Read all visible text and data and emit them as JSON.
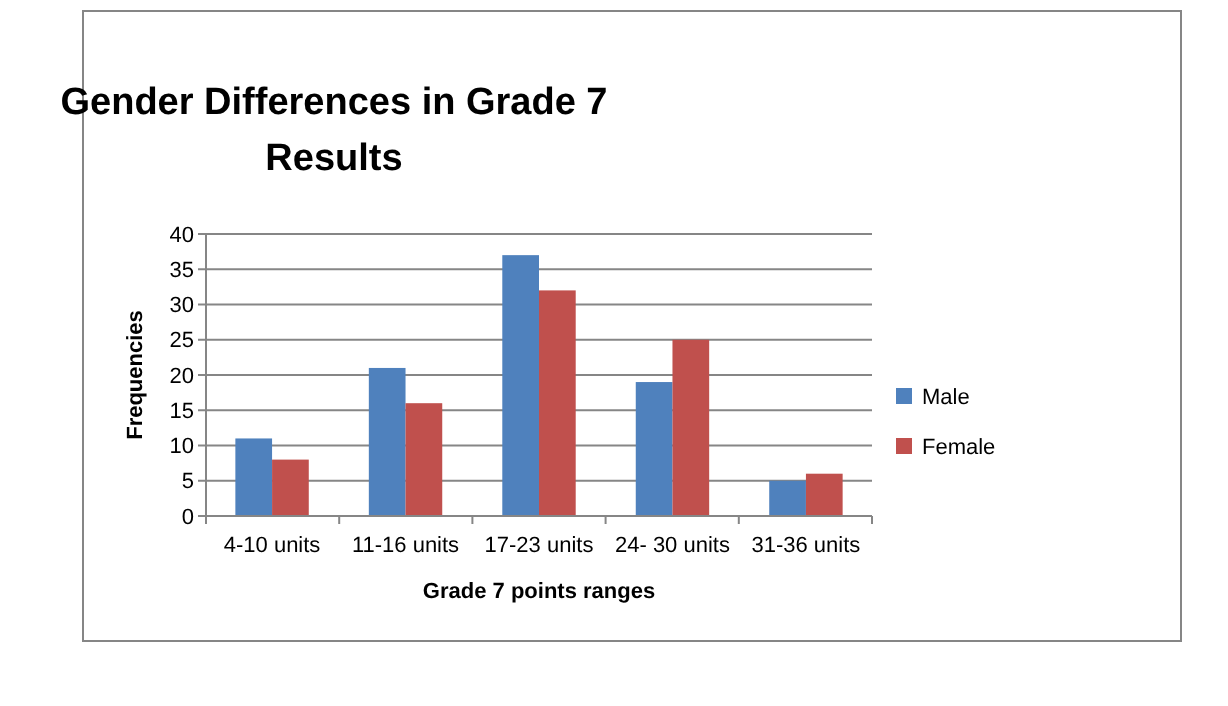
{
  "chart_data": {
    "type": "bar",
    "title": "Gender Differences in Grade 7 Results",
    "xlabel": "Grade 7 points ranges",
    "ylabel": "Frequencies",
    "categories": [
      "4-10 units",
      "11-16 units",
      "17-23 units",
      "24- 30 units",
      "31-36 units"
    ],
    "series": [
      {
        "name": "Male",
        "color": "#4f81bd",
        "values": [
          11,
          21,
          37,
          19,
          5
        ]
      },
      {
        "name": "Female",
        "color": "#c0504d",
        "values": [
          8,
          16,
          32,
          25,
          6
        ]
      }
    ],
    "ylim": [
      0,
      40
    ],
    "yticks": [
      0,
      5,
      10,
      15,
      20,
      25,
      30,
      35,
      40
    ],
    "grid": "y",
    "legend": "right"
  }
}
